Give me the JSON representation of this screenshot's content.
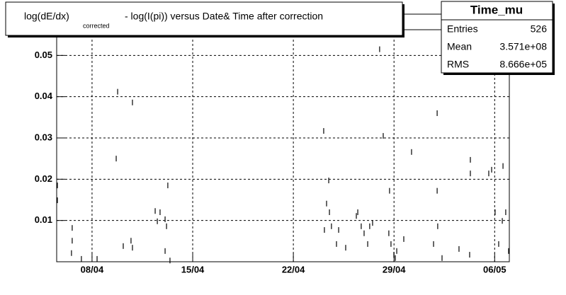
{
  "chart_data": {
    "type": "scatter",
    "title": {
      "main": "log(dE/dx)",
      "subscript": "corrected",
      "rest": "- log(I(pi)) versus Date& Time after correction"
    },
    "stats": {
      "title": "Time_mu",
      "rows": [
        [
          "Entries",
          "526"
        ],
        [
          "Mean",
          "3.571e+08"
        ],
        [
          "RMS",
          "8.666e+05"
        ]
      ]
    },
    "color": "#000000",
    "x": [
      95.59,
      95.59,
      96.62,
      96.62,
      96.57,
      97.26,
      98.35,
      99.78,
      99.68,
      100.81,
      100.17,
      100.71,
      100.81,
      102.39,
      102.54,
      102.73,
      103.08,
      103.18,
      103.27,
      103.08,
      103.42,
      114.11,
      114.16,
      114.31,
      114.51,
      114.46,
      114.65,
      115.0,
      115.15,
      115.64,
      116.38,
      116.48,
      116.72,
      116.92,
      117.17,
      117.31,
      117.51,
      118.0,
      118.25,
      118.69,
      118.64,
      118.79,
      118.99,
      119.09,
      119.19,
      119.68,
      120.22,
      121.75,
      122.0,
      122.04,
      122.0,
      122.34,
      123.52,
      124.31,
      124.31,
      124.26,
      125.59,
      125.79,
      126.03,
      126.28,
      126.58,
      126.53,
      126.77,
      126.97
    ],
    "values": [
      0.0185,
      0.0149,
      0.0082,
      0.0051,
      0.0021,
      0.0007,
      0.0007,
      0.0412,
      0.025,
      0.0386,
      0.0038,
      0.0051,
      0.0034,
      0.0123,
      0.0098,
      0.012,
      0.0103,
      0.0086,
      0.0185,
      0.0026,
      0.0003,
      0.0317,
      0.0077,
      0.0141,
      0.012,
      0.0197,
      0.0086,
      0.0043,
      0.0077,
      0.0034,
      0.0111,
      0.012,
      0.0086,
      0.0069,
      0.0043,
      0.0086,
      0.0094,
      0.0515,
      0.0305,
      0.0172,
      0.0069,
      0.0043,
      0.0017,
      0.0009,
      0.0026,
      0.0055,
      0.0266,
      0.0043,
      0.036,
      0.0086,
      0.0172,
      0.0009,
      0.0031,
      0.0214,
      0.0247,
      0.0017,
      0.0214,
      0.0223,
      0.012,
      0.0043,
      0.0232,
      0.0099,
      0.012,
      0.0026
    ],
    "xlim": [
      95.54,
      127.02
    ],
    "xticks": [
      {
        "value": 98,
        "label": "08/04"
      },
      {
        "value": 105,
        "label": "15/04"
      },
      {
        "value": 112,
        "label": "22/04"
      },
      {
        "value": 119,
        "label": "29/04"
      },
      {
        "value": 126,
        "label": "06/05"
      }
    ],
    "ylim": [
      0,
      0.06
    ],
    "yticks": [
      0.01,
      0.02,
      0.03,
      0.04,
      0.05
    ],
    "grid": true
  }
}
